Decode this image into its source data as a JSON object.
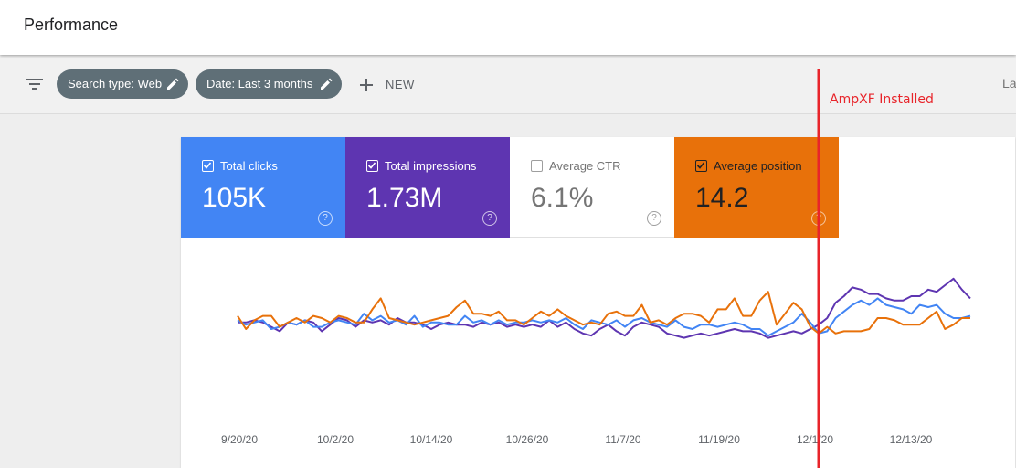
{
  "header": {
    "title": "Performance"
  },
  "filters": {
    "search_type_chip": "Search type: Web",
    "date_chip": "Date: Last 3 months",
    "new_label": "NEW",
    "truncated_right": "La"
  },
  "metrics": [
    {
      "label": "Total clicks",
      "value": "105K",
      "checked": true,
      "color": "#4285f4"
    },
    {
      "label": "Total impressions",
      "value": "1.73M",
      "checked": true,
      "color": "#5e35b1"
    },
    {
      "label": "Average CTR",
      "value": "6.1%",
      "checked": false,
      "color": "#ffffff"
    },
    {
      "label": "Average position",
      "value": "14.2",
      "checked": true,
      "color": "#e8710a"
    }
  ],
  "annotation": {
    "text": "AmpXF Installed",
    "color": "#e8242a",
    "at_date": "12/4/20"
  },
  "chart_data": {
    "type": "line",
    "x_start": "9/17/20",
    "x_tick_labels": [
      "9/20/20",
      "10/2/20",
      "10/14/20",
      "10/26/20",
      "11/7/20",
      "11/19/20",
      "12/1/20",
      "12/13/20"
    ],
    "series": [
      {
        "name": "Total impressions",
        "color": "#5e35b1",
        "values": [
          53,
          53,
          54,
          53,
          51,
          49,
          53,
          52,
          54,
          53,
          49,
          52,
          55,
          54,
          51,
          54,
          53,
          54,
          52,
          55,
          53,
          53,
          52,
          50,
          52,
          53,
          52,
          52,
          51,
          53,
          52,
          53,
          51,
          52,
          51,
          52,
          51,
          54,
          51,
          53,
          50,
          48,
          47,
          50,
          52,
          49,
          47,
          51,
          53,
          52,
          51,
          48,
          47,
          46,
          47,
          48,
          47,
          48,
          49,
          50,
          49,
          49,
          48,
          46,
          47,
          48,
          49,
          48,
          50,
          52,
          55,
          62,
          65,
          69,
          68,
          66,
          66,
          64,
          63,
          63,
          65,
          65,
          68,
          67,
          70,
          73,
          68,
          64
        ]
      },
      {
        "name": "Total clicks",
        "color": "#4285f4",
        "values": [
          54,
          52,
          53,
          54,
          50,
          51,
          53,
          52,
          54,
          51,
          51,
          53,
          54,
          53,
          52,
          57,
          54,
          56,
          53,
          54,
          52,
          56,
          51,
          53,
          53,
          52,
          52,
          56,
          53,
          54,
          52,
          54,
          52,
          53,
          53,
          54,
          53,
          54,
          53,
          55,
          52,
          50,
          54,
          53,
          52,
          54,
          51,
          54,
          55,
          53,
          52,
          51,
          54,
          51,
          50,
          52,
          52,
          51,
          52,
          53,
          52,
          50,
          50,
          47,
          49,
          51,
          53,
          57,
          53,
          48,
          49,
          55,
          58,
          61,
          63,
          61,
          64,
          61,
          60,
          59,
          57,
          61,
          60,
          61,
          57,
          55,
          55,
          56
        ]
      },
      {
        "name": "Average position",
        "color": "#e8710a",
        "values": [
          56,
          50,
          54,
          56,
          56,
          51,
          53,
          55,
          53,
          56,
          55,
          53,
          56,
          55,
          53,
          53,
          59,
          64,
          55,
          54,
          53,
          52,
          53,
          54,
          55,
          56,
          60,
          63,
          57,
          57,
          56,
          58,
          54,
          54,
          52,
          55,
          58,
          56,
          59,
          56,
          54,
          52,
          53,
          52,
          57,
          58,
          56,
          56,
          61,
          53,
          54,
          52,
          55,
          57,
          57,
          56,
          53,
          59,
          59,
          64,
          56,
          56,
          63,
          67,
          52,
          57,
          62,
          59,
          51,
          48,
          51,
          48,
          49,
          49,
          49,
          50,
          55,
          55,
          54,
          52,
          52,
          52,
          55,
          58,
          50,
          52,
          55,
          55
        ]
      }
    ],
    "ylim": [
      0,
      100
    ],
    "grid": false,
    "title": "",
    "xlabel": "",
    "ylabel": ""
  }
}
